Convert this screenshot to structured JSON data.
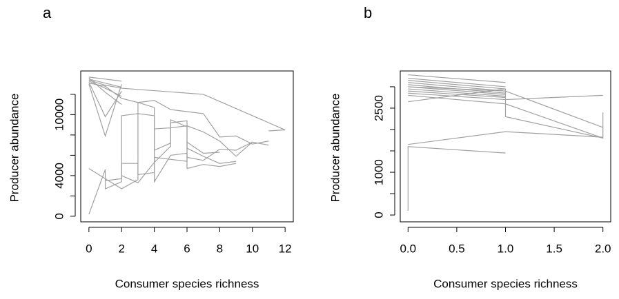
{
  "chart_data": [
    {
      "type": "line",
      "title": "a",
      "xlabel": "Consumer species richness",
      "ylabel": "Producer abundance",
      "color": "#a0a0a0",
      "xlim": [
        -0.5,
        12.5
      ],
      "ylim": [
        -550,
        14300
      ],
      "xticks": [
        0,
        2,
        4,
        6,
        8,
        10,
        12
      ],
      "yticks": [
        0,
        4000,
        10000
      ],
      "yminor_ticks": [
        2000,
        6000,
        8000,
        12000
      ],
      "series": [
        {
          "x": [
            0,
            1,
            2
          ],
          "values": [
            13700,
            13500,
            13300
          ]
        },
        {
          "x": [
            0,
            1,
            2
          ],
          "values": [
            13500,
            13100,
            12700
          ]
        },
        {
          "x": [
            0,
            1,
            2
          ],
          "values": [
            13300,
            12600,
            11800
          ]
        },
        {
          "x": [
            0,
            1,
            2
          ],
          "values": [
            13600,
            12200,
            11000
          ]
        },
        {
          "x": [
            0,
            1,
            2
          ],
          "values": [
            13200,
            9800,
            12300
          ]
        },
        {
          "x": [
            0,
            1,
            2
          ],
          "values": [
            13000,
            7900,
            13000
          ]
        },
        {
          "x": [
            0,
            1,
            2,
            7,
            12,
            11,
            12
          ],
          "values": [
            13400,
            12900,
            12600,
            12000,
            8500,
            8400,
            8500
          ]
        },
        {
          "x": [
            0,
            1,
            2,
            3,
            4,
            5,
            6,
            7,
            8,
            9,
            10,
            11
          ],
          "values": [
            13100,
            12800,
            11600,
            11200,
            11400,
            10500,
            10300,
            10100,
            7800,
            7900,
            7100,
            7400
          ]
        },
        {
          "x": [
            0,
            1,
            1,
            2,
            2,
            3,
            3,
            4,
            4,
            5,
            6,
            6,
            7,
            8
          ],
          "values": [
            200,
            4600,
            2700,
            3400,
            5200,
            5200,
            4100,
            4300,
            5800,
            5600,
            5400,
            7300,
            6200,
            6300
          ]
        },
        {
          "x": [
            0,
            1,
            2,
            3,
            3,
            4,
            4,
            5,
            6,
            6,
            7,
            8,
            9
          ],
          "values": [
            4700,
            3700,
            2700,
            3600,
            11200,
            10700,
            3400,
            6000,
            6200,
            4700,
            5100,
            4900,
            5200
          ]
        },
        {
          "x": [
            1,
            2,
            2,
            3,
            4,
            4,
            5,
            5,
            6,
            6,
            7,
            8,
            9,
            10
          ],
          "values": [
            3500,
            3700,
            9900,
            10100,
            9900,
            6500,
            7200,
            9500,
            8800,
            5800,
            5500,
            6600,
            6500,
            7300
          ]
        },
        {
          "x": [
            2,
            3,
            4,
            5,
            5,
            6,
            6,
            7,
            8,
            9
          ],
          "values": [
            4000,
            3300,
            5300,
            6900,
            9200,
            9400,
            6700,
            5900,
            5200,
            5400
          ]
        },
        {
          "x": [
            4,
            5,
            6,
            7,
            8,
            9,
            10,
            11
          ],
          "values": [
            8600,
            8700,
            8900,
            8300,
            7400,
            5900,
            7300,
            7000
          ]
        }
      ]
    },
    {
      "type": "line",
      "title": "b",
      "xlabel": "Consumer species richness",
      "ylabel": "Producer abundance",
      "color": "#a0a0a0",
      "xlim": [
        -0.08,
        2.08
      ],
      "ylim": [
        -160,
        3370
      ],
      "xticks": [
        {
          "value": 0,
          "label": "0.0"
        },
        {
          "value": 0.5,
          "label": "0.5"
        },
        {
          "value": 1,
          "label": "1.0"
        },
        {
          "value": 1.5,
          "label": "1.5"
        },
        {
          "value": 2,
          "label": "2.0"
        }
      ],
      "yticks": [
        0,
        1000,
        2500
      ],
      "yminor_ticks": [
        500,
        1500,
        2000,
        3000
      ],
      "series": [
        {
          "x": [
            0,
            1
          ],
          "values": [
            3280,
            3100
          ]
        },
        {
          "x": [
            0,
            1
          ],
          "values": [
            3200,
            3000
          ]
        },
        {
          "x": [
            0,
            1
          ],
          "values": [
            3150,
            2950
          ]
        },
        {
          "x": [
            0,
            1
          ],
          "values": [
            3100,
            2900
          ]
        },
        {
          "x": [
            0,
            1
          ],
          "values": [
            3050,
            2850
          ]
        },
        {
          "x": [
            0,
            1
          ],
          "values": [
            3000,
            2820
          ]
        },
        {
          "x": [
            0,
            1
          ],
          "values": [
            2950,
            2780
          ]
        },
        {
          "x": [
            0,
            1
          ],
          "values": [
            2900,
            2750
          ]
        },
        {
          "x": [
            0,
            1,
            2
          ],
          "values": [
            2850,
            2700,
            2800
          ]
        },
        {
          "x": [
            0,
            1,
            2
          ],
          "values": [
            2800,
            2600,
            1800
          ]
        },
        {
          "x": [
            0,
            1,
            1,
            2,
            2
          ],
          "values": [
            2650,
            2950,
            2300,
            1800,
            2400
          ]
        },
        {
          "x": [
            0,
            1,
            2
          ],
          "values": [
            3000,
            2900,
            2050
          ]
        },
        {
          "x": [
            0,
            0,
            1
          ],
          "values": [
            100,
            1600,
            1450
          ]
        },
        {
          "x": [
            0,
            1,
            2
          ],
          "values": [
            1650,
            1950,
            1820
          ]
        }
      ]
    }
  ]
}
